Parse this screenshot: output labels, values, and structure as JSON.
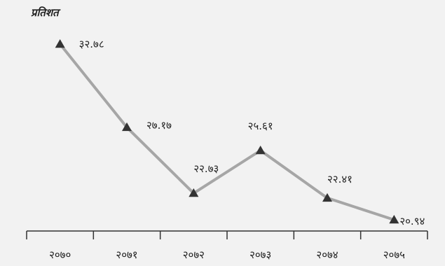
{
  "chart_data": {
    "type": "line",
    "ylabel": "प्रतिशत",
    "categories": [
      "२०७०",
      "२०७१",
      "२०७२",
      "२०७३",
      "२०७४",
      "२०७५"
    ],
    "values": [
      32.78,
      27.17,
      22.73,
      25.61,
      22.41,
      20.94
    ],
    "data_labels": [
      "३२.७८",
      "२७.१७",
      "२२.७३",
      "२५.६१",
      "२२.४१",
      "२०.९४"
    ],
    "line_color": "#a6a6a6",
    "marker_color": "#333333",
    "marker": "triangle",
    "grid": false,
    "legend": "none"
  }
}
